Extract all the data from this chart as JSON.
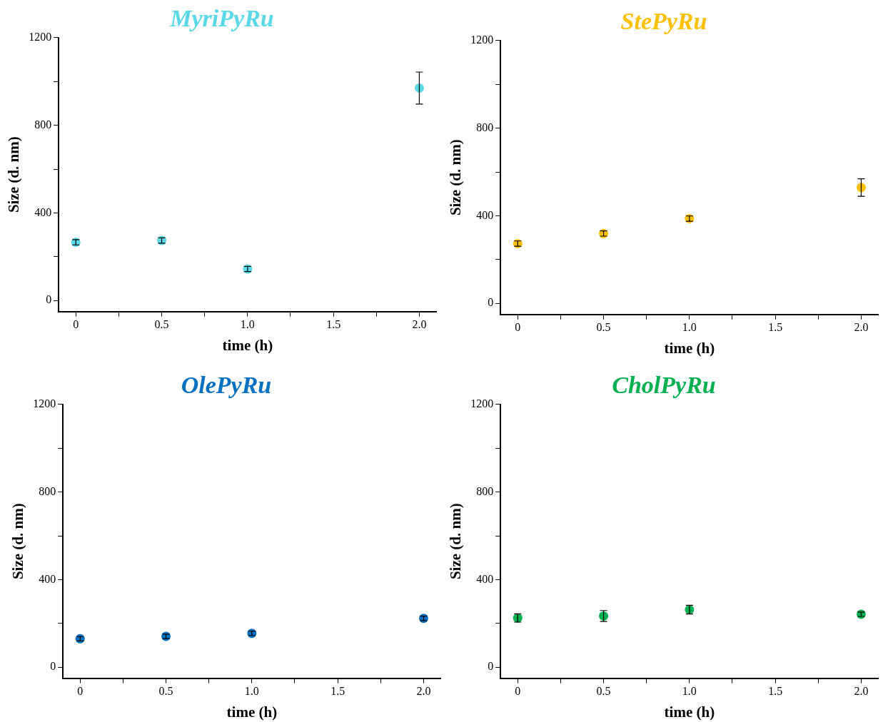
{
  "chart_data": [
    {
      "type": "scatter",
      "title": "MyriPyRu",
      "xlabel": "time (h)",
      "ylabel": "Size (d. nm)",
      "x": [
        0,
        0.5,
        1.0,
        2.0
      ],
      "marker": "circle",
      "legend": false,
      "grid": false,
      "series": [
        {
          "color": "#5ad8e8",
          "values": [
            266,
            274,
            144,
            970
          ],
          "errors": [
            12,
            12,
            12,
            73
          ]
        }
      ],
      "xlim": [
        -0.1,
        2.1
      ],
      "xticks": [
        0,
        {
          "value": 0.25,
          "label": null
        },
        0.5,
        {
          "value": 0.75,
          "label": null
        },
        {
          "value": 1.0,
          "label": "1.0"
        },
        {
          "value": 1.25,
          "label": null
        },
        1.5,
        {
          "value": 1.75,
          "label": null
        },
        {
          "value": 2.0,
          "label": "2.0"
        }
      ],
      "ylim": [
        -50,
        1200
      ],
      "yticks": [
        0,
        {
          "value": 200,
          "label": null
        },
        400,
        {
          "value": 600,
          "label": null
        },
        800,
        {
          "value": 1000,
          "label": null
        },
        1200
      ]
    },
    {
      "type": "scatter",
      "title": "StePyRu",
      "xlabel": "time (h)",
      "ylabel": "Size (d. nm)",
      "x": [
        0,
        0.5,
        1.0,
        2.0
      ],
      "marker": "circle",
      "legend": false,
      "grid": false,
      "series": [
        {
          "color": "#ffc000",
          "values": [
            273,
            319,
            387,
            529
          ],
          "errors": [
            12,
            12,
            12,
            40
          ]
        }
      ],
      "xlim": [
        -0.1,
        2.1
      ],
      "xticks": [
        0,
        {
          "value": 0.25,
          "label": null
        },
        0.5,
        {
          "value": 0.75,
          "label": null
        },
        {
          "value": 1.0,
          "label": "1.0"
        },
        {
          "value": 1.25,
          "label": null
        },
        1.5,
        {
          "value": 1.75,
          "label": null
        },
        {
          "value": 2.0,
          "label": "2.0"
        }
      ],
      "ylim": [
        -50,
        1200
      ],
      "yticks": [
        0,
        {
          "value": 200,
          "label": null
        },
        400,
        {
          "value": 600,
          "label": null
        },
        800,
        {
          "value": 1000,
          "label": null
        },
        1200
      ]
    },
    {
      "type": "scatter",
      "title": "OlePyRu",
      "xlabel": "time (h)",
      "ylabel": "Size (d. nm)",
      "x": [
        0,
        0.5,
        1.0,
        2.0
      ],
      "marker": "circle",
      "legend": false,
      "grid": false,
      "series": [
        {
          "color": "#0070c0",
          "values": [
            130,
            141,
            155,
            223
          ],
          "errors": [
            10,
            10,
            10,
            10
          ]
        }
      ],
      "xlim": [
        -0.1,
        2.1
      ],
      "xticks": [
        0,
        {
          "value": 0.25,
          "label": null
        },
        0.5,
        {
          "value": 0.75,
          "label": null
        },
        {
          "value": 1.0,
          "label": "1.0"
        },
        {
          "value": 1.25,
          "label": null
        },
        1.5,
        {
          "value": 1.75,
          "label": null
        },
        {
          "value": 2.0,
          "label": "2.0"
        }
      ],
      "ylim": [
        -50,
        1200
      ],
      "yticks": [
        0,
        {
          "value": 200,
          "label": null
        },
        400,
        {
          "value": 600,
          "label": null
        },
        800,
        {
          "value": 1000,
          "label": null
        },
        1200
      ]
    },
    {
      "type": "scatter",
      "title": "CholPyRu",
      "xlabel": "time (h)",
      "ylabel": "Size (d. nm)",
      "x": [
        0,
        0.5,
        1.0,
        2.0
      ],
      "marker": "circle",
      "legend": false,
      "grid": false,
      "series": [
        {
          "color": "#00b050",
          "values": [
            225,
            234,
            263,
            242
          ],
          "errors": [
            19,
            25,
            20,
            10
          ]
        }
      ],
      "xlim": [
        -0.1,
        2.1
      ],
      "xticks": [
        0,
        {
          "value": 0.25,
          "label": null
        },
        0.5,
        {
          "value": 0.75,
          "label": null
        },
        {
          "value": 1.0,
          "label": "1.0"
        },
        {
          "value": 1.25,
          "label": null
        },
        1.5,
        {
          "value": 1.75,
          "label": null
        },
        {
          "value": 2.0,
          "label": "2.0"
        }
      ],
      "ylim": [
        -50,
        1200
      ],
      "yticks": [
        0,
        {
          "value": 200,
          "label": null
        },
        400,
        {
          "value": 600,
          "label": null
        },
        800,
        {
          "value": 1000,
          "label": null
        },
        1200
      ]
    }
  ]
}
